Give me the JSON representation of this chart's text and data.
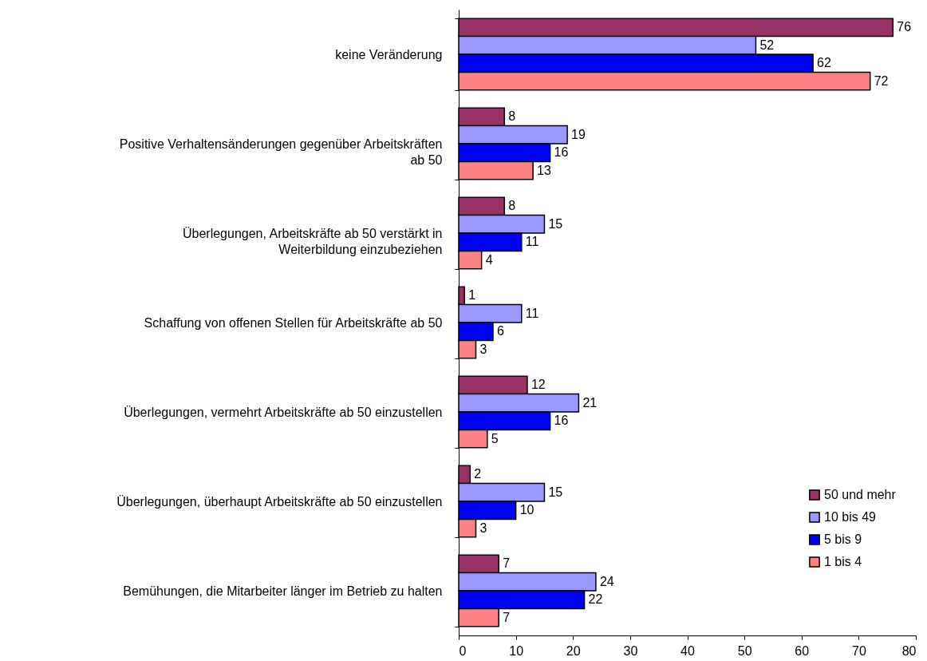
{
  "chart_data": {
    "type": "bar",
    "orientation": "horizontal",
    "categories": [
      "keine Veränderung",
      "Positive Verhaltensänderungen gegenüber Arbeitskräften\nab 50",
      "Überlegungen, Arbeitskräfte ab 50 verstärkt in\nWeiterbildung einzubeziehen",
      "Schaffung von offenen Stellen für Arbeitskräfte ab 50",
      "Überlegungen, vermehrt Arbeitskräfte ab 50 einzustellen",
      "Überlegungen, überhaupt Arbeitskräfte ab 50 einzustellen",
      "Bemühungen, die Mitarbeiter länger im Betrieb zu halten"
    ],
    "series": [
      {
        "name": "50 und mehr",
        "color": "#993366",
        "values": [
          76,
          8,
          8,
          1,
          12,
          2,
          7
        ]
      },
      {
        "name": "10 bis 49",
        "color": "#9999ff",
        "values": [
          52,
          19,
          15,
          11,
          21,
          15,
          24
        ]
      },
      {
        "name": "5 bis 9",
        "color": "#0000ff",
        "values": [
          62,
          16,
          11,
          6,
          16,
          10,
          22
        ]
      },
      {
        "name": "1 bis 4",
        "color": "#ff8080",
        "values": [
          72,
          13,
          4,
          3,
          5,
          3,
          7
        ]
      }
    ],
    "xlim": [
      0,
      80
    ],
    "xticks": [
      0,
      10,
      20,
      30,
      40,
      50,
      60,
      70,
      80
    ],
    "data_labels": true,
    "grid": false,
    "legend": "bottom right"
  }
}
